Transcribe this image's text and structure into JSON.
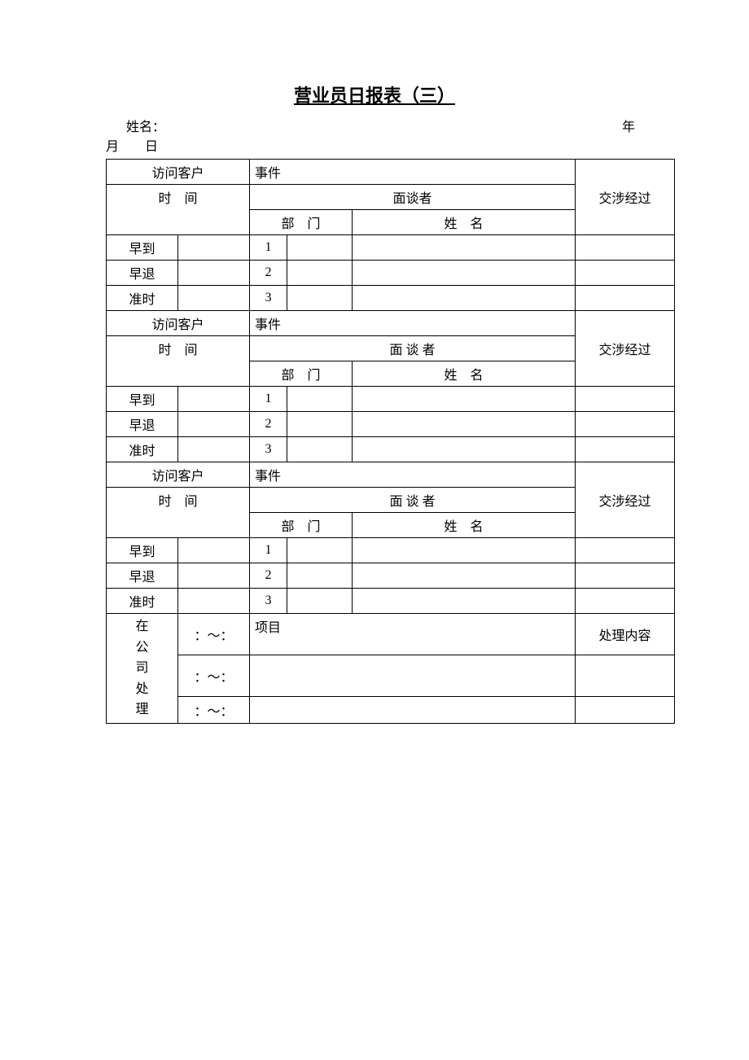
{
  "title": "营业员日报表（三）",
  "header": {
    "name_label": "姓名：",
    "year_label": "年",
    "month_day_label": "月　　日"
  },
  "labels": {
    "visit_customer": "访问客户",
    "event": "事件",
    "negotiation": "交涉经过",
    "time": "时　间",
    "interviewer": "面谈者",
    "interviewer_spaced": "面 谈 者",
    "department": "部　门",
    "name": "姓　名",
    "early_arrive": "早到",
    "early_leave": "早退",
    "on_time": "准时",
    "row1": "1",
    "row2": "2",
    "row3": "3",
    "in_company": "在公司处理",
    "project": "项目",
    "process_content": "处理内容",
    "time_range": "：～："
  }
}
